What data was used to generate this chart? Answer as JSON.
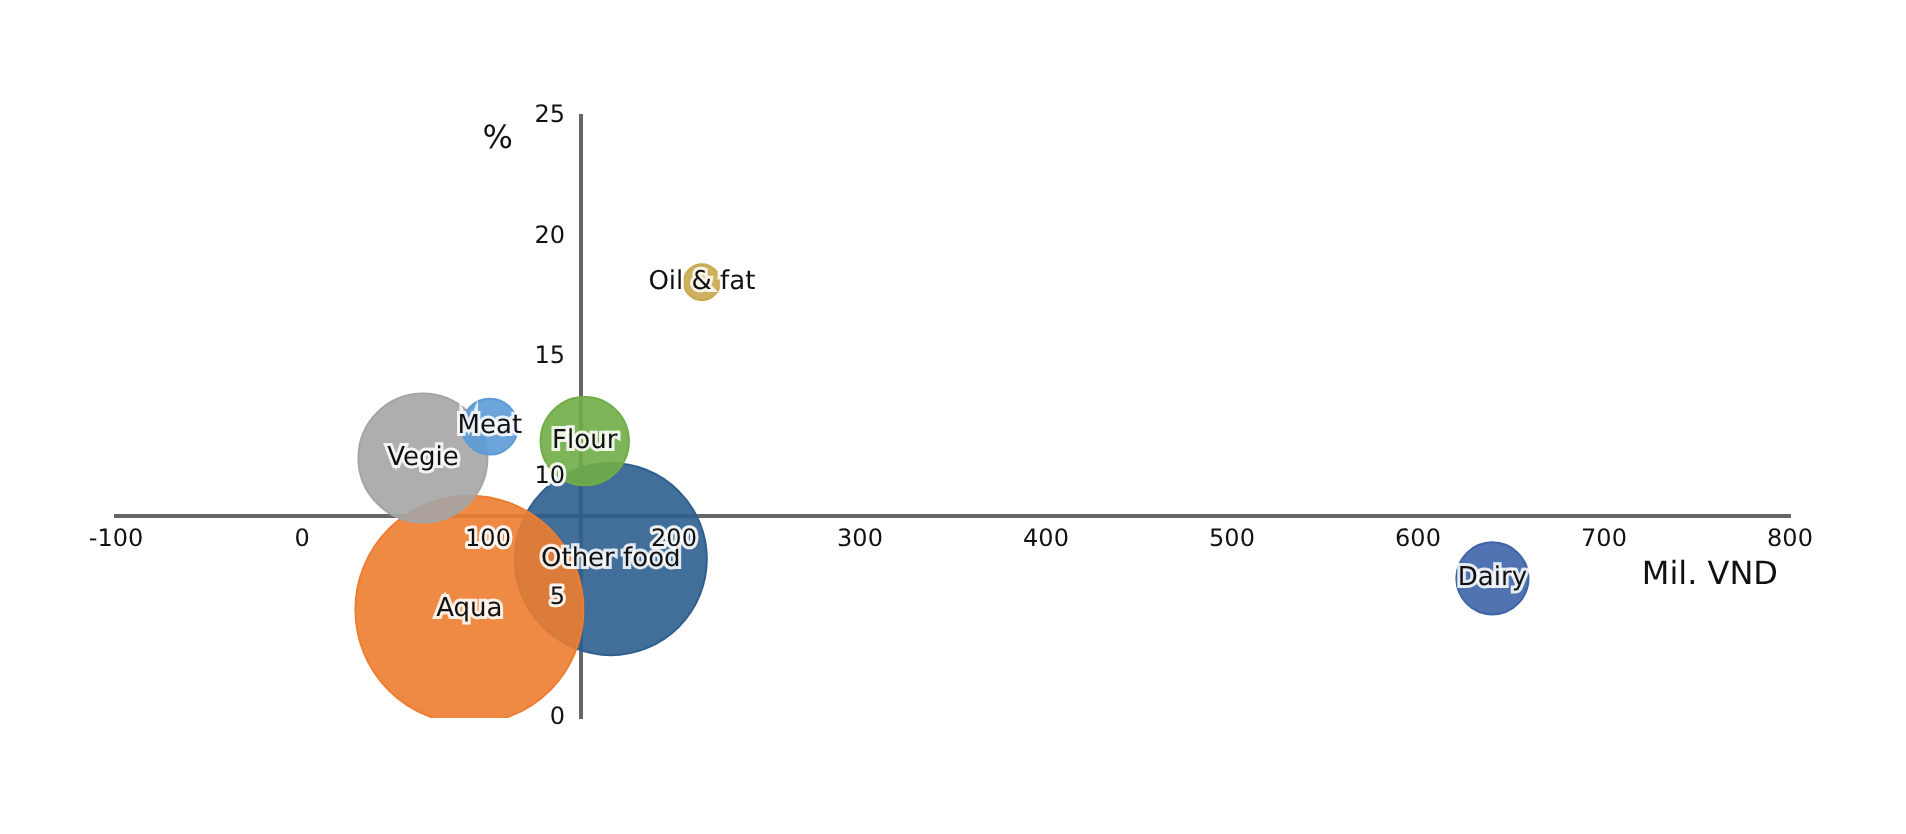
{
  "chart_data": {
    "type": "bubble",
    "xlabel": "Mil. VND",
    "ylabel": "%",
    "xlim": [
      -100,
      800
    ],
    "xticks": [
      -100,
      0,
      100,
      200,
      300,
      400,
      500,
      600,
      700,
      800
    ],
    "ylim": [
      0,
      25
    ],
    "yticks": [
      0,
      5,
      10,
      15,
      20,
      25
    ],
    "grid": false,
    "legend": false,
    "series": [
      {
        "name": "Oil & fat",
        "color": "#c8a850",
        "x": [
          215
        ],
        "values": [
          18.1
        ],
        "sizes": [
          0.025
        ]
      },
      {
        "name": "Meat",
        "color": "#5b9bd5",
        "x": [
          101
        ],
        "values": [
          12.1
        ],
        "sizes": [
          0.06
        ]
      },
      {
        "name": "Vegie",
        "color": "#a5a5a5",
        "x": [
          65
        ],
        "values": [
          10.8
        ],
        "sizes": [
          0.32
        ]
      },
      {
        "name": "Flour",
        "color": "#70ad47",
        "x": [
          152
        ],
        "values": [
          11.5
        ],
        "sizes": [
          0.15
        ]
      },
      {
        "name": "Aqua",
        "color": "#ed7d31",
        "x": [
          90
        ],
        "values": [
          4.5
        ],
        "sizes": [
          1
        ]
      },
      {
        "name": "Other food",
        "color": "#2e5f8f",
        "x": [
          166
        ],
        "values": [
          6.6
        ],
        "sizes": [
          0.71
        ]
      },
      {
        "name": "Dairy",
        "color": "#3e64a8",
        "x": [
          640
        ],
        "values": [
          5.8
        ],
        "sizes": [
          0.1
        ]
      }
    ]
  }
}
